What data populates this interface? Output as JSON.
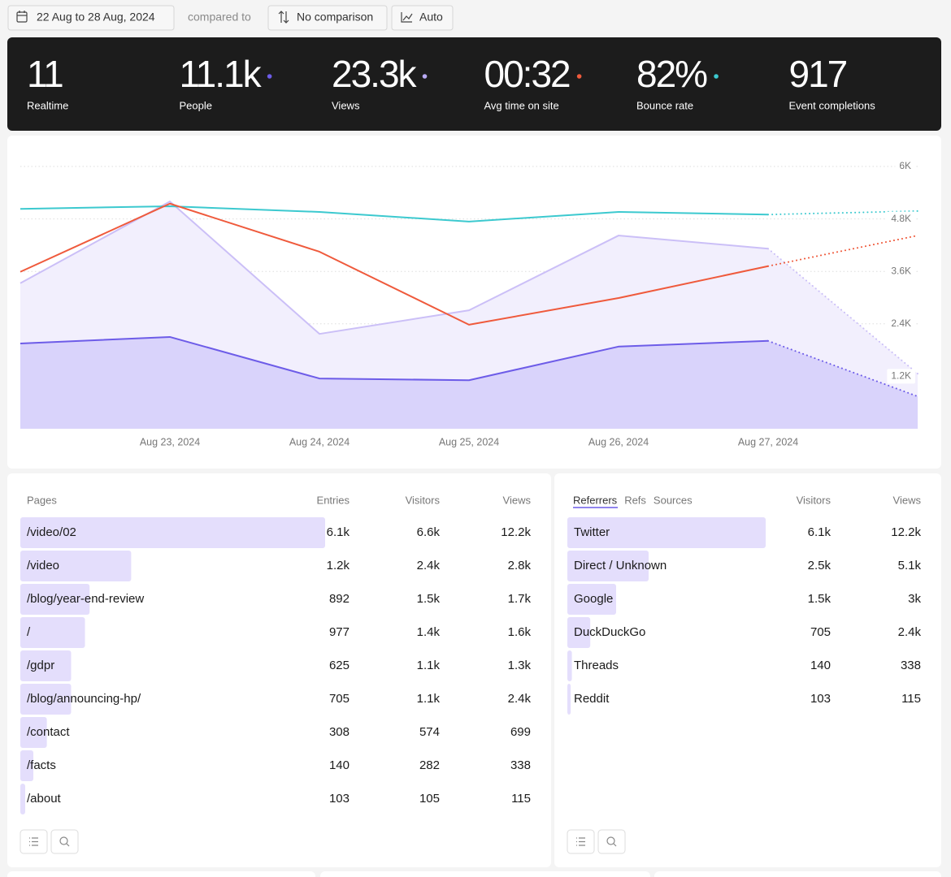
{
  "toolbar": {
    "date_range": "22 Aug to 28 Aug, 2024",
    "compared_to": "compared to",
    "comparison": "No comparison",
    "interval": "Auto"
  },
  "stats": [
    {
      "value": "11",
      "label": "Realtime"
    },
    {
      "value": "11.1k",
      "label": "People",
      "dot": "#6d5ce8"
    },
    {
      "value": "23.3k",
      "label": "Views",
      "dot": "#b9aaf5"
    },
    {
      "value": "00:32",
      "label": "Avg time on site",
      "dot": "#ef5a3c"
    },
    {
      "value": "82%",
      "label": "Bounce rate",
      "dot": "#3cc9cf"
    },
    {
      "value": "917",
      "label": "Event completions"
    }
  ],
  "chart_data": {
    "type": "line",
    "categories": [
      null,
      "Aug 23, 2024",
      "Aug 24, 2024",
      "Aug 25, 2024",
      "Aug 26, 2024",
      "Aug 27, 2024",
      null
    ],
    "ylim": [
      0,
      6000
    ],
    "yticks": [
      {
        "value": 1200,
        "label": "1.2K"
      },
      {
        "value": 2400,
        "label": "2.4K"
      },
      {
        "value": 3600,
        "label": "3.6K"
      },
      {
        "value": 4800,
        "label": "4.8K"
      },
      {
        "value": 6000,
        "label": "6K"
      }
    ],
    "grid": true,
    "forecast_last": true,
    "series": [
      {
        "color": "#cbbff7",
        "fill": "#f2effd",
        "area": true,
        "values": [
          3330,
          5200,
          2170,
          2710,
          4420,
          4120,
          1260
        ]
      },
      {
        "color": "#6d5ce8",
        "fill": "#d9d3fb",
        "area": true,
        "values": [
          1950,
          2100,
          1150,
          1110,
          1880,
          2010,
          740
        ]
      },
      {
        "color": "#3cc9cf",
        "values": [
          5030,
          5090,
          4960,
          4740,
          4960,
          4900,
          4980
        ]
      },
      {
        "color": "#ef5a3c",
        "values": [
          3590,
          5150,
          4050,
          2380,
          2990,
          3720,
          4420
        ]
      }
    ]
  },
  "pages": {
    "headers": [
      "Pages",
      "Entries",
      "Visitors",
      "Views"
    ],
    "rows": [
      {
        "name": "/video/02",
        "entries": "6.1k",
        "visitors": {
          "value": 6600,
          "label": "6.6k"
        },
        "views": "12.2k"
      },
      {
        "name": "/video",
        "entries": "1.2k",
        "visitors": {
          "value": 2400,
          "label": "2.4k"
        },
        "views": "2.8k"
      },
      {
        "name": "/blog/year-end-review",
        "entries": "892",
        "visitors": {
          "value": 1500,
          "label": "1.5k"
        },
        "views": "1.7k"
      },
      {
        "name": "/",
        "entries": "977",
        "visitors": {
          "value": 1400,
          "label": "1.4k"
        },
        "views": "1.6k"
      },
      {
        "name": "/gdpr",
        "entries": "625",
        "visitors": {
          "value": 1100,
          "label": "1.1k"
        },
        "views": "1.3k"
      },
      {
        "name": "/blog/announcing-hp/",
        "entries": "705",
        "visitors": {
          "value": 1100,
          "label": "1.1k"
        },
        "views": "2.4k"
      },
      {
        "name": "/contact",
        "entries": "308",
        "visitors": 574,
        "views": "699"
      },
      {
        "name": "/facts",
        "entries": "140",
        "visitors": 282,
        "views": "338"
      },
      {
        "name": "/about",
        "entries": "103",
        "visitors": 105,
        "views": "115"
      }
    ]
  },
  "referrers": {
    "tabs": [
      "Referrers",
      "Refs",
      "Sources"
    ],
    "headers": [
      "Visitors",
      "Views"
    ],
    "rows": [
      {
        "name": "Twitter",
        "visitors": {
          "value": 6100,
          "label": "6.1k"
        },
        "views": "12.2k"
      },
      {
        "name": "Direct / Unknown",
        "visitors": {
          "value": 2500,
          "label": "2.5k"
        },
        "views": "5.1k"
      },
      {
        "name": "Google",
        "visitors": {
          "value": 1500,
          "label": "1.5k"
        },
        "views": "3k"
      },
      {
        "name": "DuckDuckGo",
        "visitors": 705,
        "views": "2.4k"
      },
      {
        "name": "Threads",
        "visitors": 140,
        "views": "338"
      },
      {
        "name": "Reddit",
        "visitors": 103,
        "views": "115"
      }
    ]
  }
}
